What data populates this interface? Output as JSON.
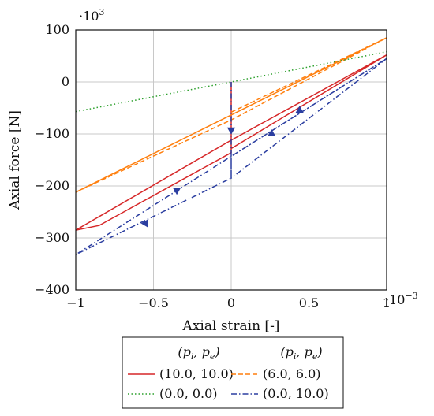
{
  "chart_data": {
    "type": "line",
    "xlabel": "Axial strain [-]",
    "ylabel": "Axial force [N]",
    "x_multiplier": "·10",
    "x_multiplier_exp": "−3",
    "y_multiplier": "·10",
    "y_multiplier_exp": "3",
    "xlim": [
      -1,
      1
    ],
    "ylim": [
      -400,
      100
    ],
    "xticks": [
      -1,
      -0.5,
      0,
      0.5,
      1
    ],
    "xtick_labels": [
      "−1",
      "−0.5",
      "0",
      "0.5",
      "1"
    ],
    "yticks": [
      -400,
      -300,
      -200,
      -100,
      0,
      100
    ],
    "ytick_labels": [
      "−400",
      "−300",
      "−200",
      "−100",
      "0",
      "100"
    ],
    "grid": true,
    "legend_header": [
      "(p_i, p_e)",
      "(p_i, p_e)"
    ],
    "legend_placement": "below",
    "series": [
      {
        "name": "(10.0, 10.0)",
        "color": "#d62728",
        "dash": "solid",
        "x": [
          0,
          0,
          1.0,
          0.0,
          -1.0,
          -0.85,
          0,
          0,
          1.0
        ],
        "y": [
          0,
          -128,
          52,
          -112,
          -285,
          -276,
          -136,
          -128,
          52
        ]
      },
      {
        "name": "(6.0, 6.0)",
        "color": "#ff7f0e",
        "dash": "dashed",
        "x": [
          0,
          1.0,
          -1.0,
          1.0
        ],
        "y": [
          -58,
          85,
          -212,
          85
        ],
        "x2": [
          -1.0,
          0,
          1.0
        ],
        "y2": [
          -212,
          -73,
          85
        ]
      },
      {
        "name": "(0.0, 0.0)",
        "color": "#2ca02c",
        "dash": "dotted",
        "x": [
          -1.0,
          0,
          1.0
        ],
        "y": [
          -57,
          0,
          58
        ]
      },
      {
        "name": "(0.0, 10.0)",
        "color": "#2b3ea0",
        "dash": "dashdot",
        "x": [
          0,
          0,
          1.0,
          0,
          -1.0,
          0,
          0,
          1.0
        ],
        "y": [
          0,
          -185,
          45,
          -143,
          -332,
          -185,
          -143,
          45
        ],
        "arrows": [
          {
            "x": 0.0,
            "y": -92,
            "dir": "down"
          },
          {
            "x": 0.44,
            "y": -55,
            "dir": "down-left"
          },
          {
            "x": 0.26,
            "y": -100,
            "dir": "down-left"
          },
          {
            "x": -0.35,
            "y": -208,
            "dir": "up-right"
          },
          {
            "x": -0.55,
            "y": -272,
            "dir": "left"
          }
        ]
      }
    ]
  }
}
